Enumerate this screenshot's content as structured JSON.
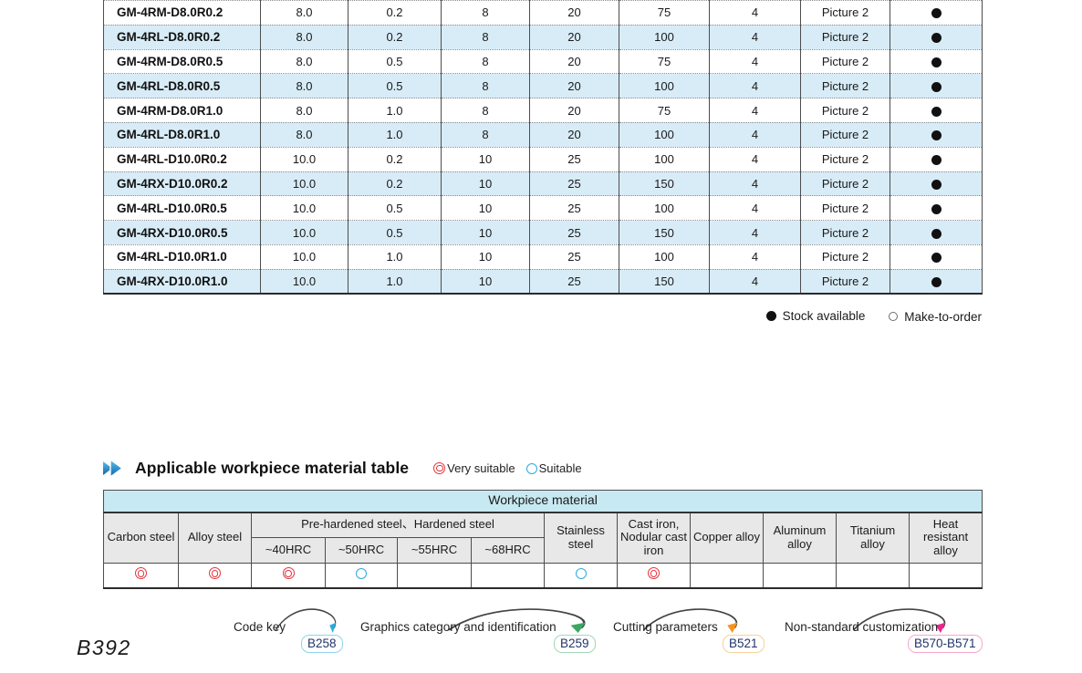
{
  "page_number": "B392",
  "spec_table": {
    "rows": [
      {
        "model": "GM-4RM-D8.0R0.2",
        "values": [
          "8.0",
          "0.2",
          "8",
          "20",
          "75",
          "4",
          "Picture 2"
        ],
        "stock": "filled"
      },
      {
        "model": "GM-4RL-D8.0R0.2",
        "values": [
          "8.0",
          "0.2",
          "8",
          "20",
          "100",
          "4",
          "Picture 2"
        ],
        "stock": "filled"
      },
      {
        "model": "GM-4RM-D8.0R0.5",
        "values": [
          "8.0",
          "0.5",
          "8",
          "20",
          "75",
          "4",
          "Picture 2"
        ],
        "stock": "filled"
      },
      {
        "model": "GM-4RL-D8.0R0.5",
        "values": [
          "8.0",
          "0.5",
          "8",
          "20",
          "100",
          "4",
          "Picture 2"
        ],
        "stock": "filled"
      },
      {
        "model": "GM-4RM-D8.0R1.0",
        "values": [
          "8.0",
          "1.0",
          "8",
          "20",
          "75",
          "4",
          "Picture 2"
        ],
        "stock": "filled"
      },
      {
        "model": "GM-4RL-D8.0R1.0",
        "values": [
          "8.0",
          "1.0",
          "8",
          "20",
          "100",
          "4",
          "Picture 2"
        ],
        "stock": "filled"
      },
      {
        "model": "GM-4RL-D10.0R0.2",
        "values": [
          "10.0",
          "0.2",
          "10",
          "25",
          "100",
          "4",
          "Picture 2"
        ],
        "stock": "filled"
      },
      {
        "model": "GM-4RX-D10.0R0.2",
        "values": [
          "10.0",
          "0.2",
          "10",
          "25",
          "150",
          "4",
          "Picture 2"
        ],
        "stock": "filled"
      },
      {
        "model": "GM-4RL-D10.0R0.5",
        "values": [
          "10.0",
          "0.5",
          "10",
          "25",
          "100",
          "4",
          "Picture 2"
        ],
        "stock": "filled"
      },
      {
        "model": "GM-4RX-D10.0R0.5",
        "values": [
          "10.0",
          "0.5",
          "10",
          "25",
          "150",
          "4",
          "Picture 2"
        ],
        "stock": "filled"
      },
      {
        "model": "GM-4RL-D10.0R1.0",
        "values": [
          "10.0",
          "1.0",
          "10",
          "25",
          "100",
          "4",
          "Picture 2"
        ],
        "stock": "filled"
      },
      {
        "model": "GM-4RX-D10.0R1.0",
        "values": [
          "10.0",
          "1.0",
          "10",
          "25",
          "150",
          "4",
          "Picture 2"
        ],
        "stock": "filled"
      }
    ],
    "legend": {
      "stock_available": "Stock available",
      "make_to_order": "Make-to-order"
    }
  },
  "material_section": {
    "title": "Applicable workpiece material table",
    "legend": {
      "very_suitable": "Very suitable",
      "suitable": "Suitable"
    },
    "table": {
      "band_title": "Workpiece material",
      "columns": [
        {
          "label": "Carbon steel"
        },
        {
          "label": "Alloy steel"
        },
        {
          "label": "Pre-hardened steel、Hardened steel",
          "subs": [
            "~40HRC",
            "~50HRC",
            "~55HRC",
            "~68HRC"
          ]
        },
        {
          "label": "Stainless steel"
        },
        {
          "label": "Cast iron, Nodular cast iron"
        },
        {
          "label": "Copper alloy"
        },
        {
          "label": "Aluminum alloy"
        },
        {
          "label": "Titanium alloy"
        },
        {
          "label": "Heat resistant alloy"
        }
      ],
      "ratings": [
        "very",
        "very",
        "very",
        "suitable",
        "",
        "",
        "suitable",
        "very",
        "",
        "",
        "",
        ""
      ]
    }
  },
  "footer_links": [
    {
      "label": "Code key",
      "badge": "B258",
      "accent": "#29abe2",
      "border": "#8ed4ee"
    },
    {
      "label": "Graphics category and identification",
      "badge": "B259",
      "accent": "#3aa864",
      "border": "#a3d7b4"
    },
    {
      "label": "Cutting parameters",
      "badge": "B521",
      "accent": "#f7941d",
      "border": "#f8d19a"
    },
    {
      "label": "Non-standard customization",
      "badge": "B570-B571",
      "accent": "#ec268f",
      "border": "#f6a7cd"
    }
  ],
  "colors": {
    "row_alt": "#d8ecf7",
    "band_cyan": "#c7e9f2",
    "header_gray": "#e8e8e8",
    "very_suitable": "#e8323c",
    "suitable": "#29abe2"
  }
}
